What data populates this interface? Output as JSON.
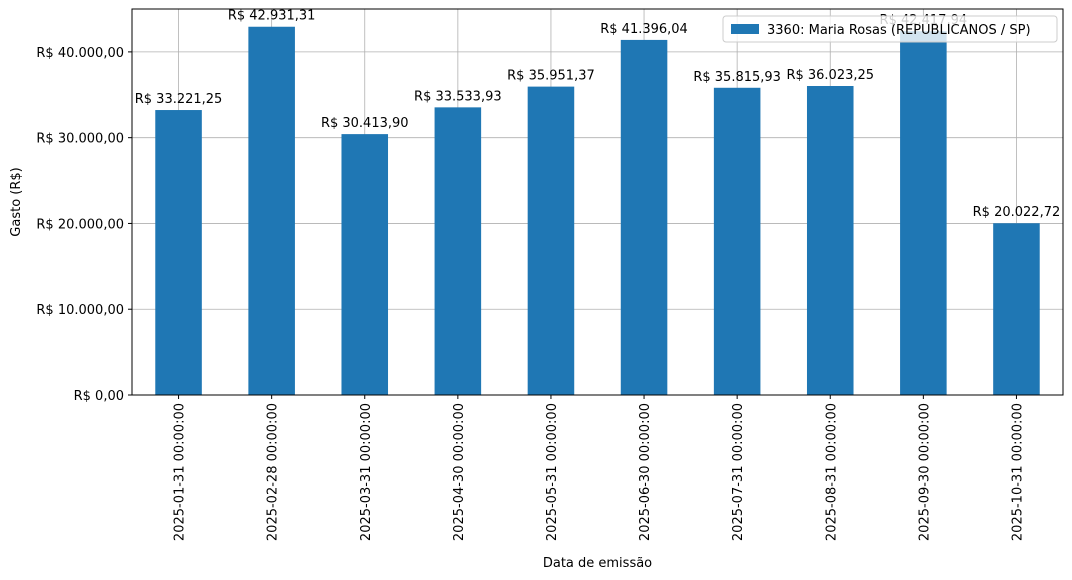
{
  "chart_data": {
    "type": "bar",
    "categories": [
      "2025-01-31 00:00:00",
      "2025-02-28 00:00:00",
      "2025-03-31 00:00:00",
      "2025-04-30 00:00:00",
      "2025-05-31 00:00:00",
      "2025-06-30 00:00:00",
      "2025-07-31 00:00:00",
      "2025-08-31 00:00:00",
      "2025-09-30 00:00:00",
      "2025-10-31 00:00:00"
    ],
    "series": [
      {
        "name": "3360: Maria Rosas (REPUBLICANOS / SP)",
        "color": "#1f77b4",
        "values": [
          33221.25,
          42931.31,
          30413.9,
          33533.93,
          35951.37,
          41396.04,
          35815.93,
          36023.25,
          42417.94,
          20022.72
        ],
        "labels": [
          "R$ 33.221,25",
          "R$ 42.931,31",
          "R$ 30.413,90",
          "R$ 33.533,93",
          "R$ 35.951,37",
          "R$ 41.396,04",
          "R$ 35.815,93",
          "R$ 36.023,25",
          "R$ 42.417,94",
          "R$ 20.022,72"
        ]
      }
    ],
    "xlabel": "Data de emissão",
    "ylabel": "Gasto (R$)",
    "ylim": [
      0,
      45000
    ],
    "yticks": [
      0,
      10000,
      20000,
      30000,
      40000
    ],
    "ytick_labels": [
      "R$ 0,00",
      "R$ 10.000,00",
      "R$ 20.000,00",
      "R$ 30.000,00",
      "R$ 40.000,00"
    ],
    "grid": true,
    "legend_position": "top-right"
  }
}
